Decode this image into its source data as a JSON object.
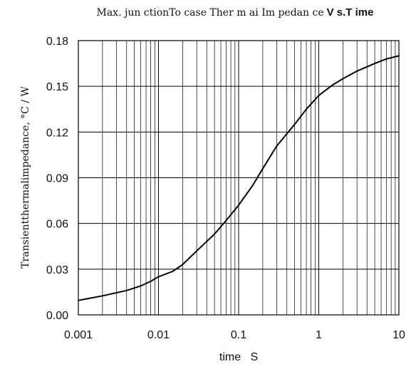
{
  "chart_data": {
    "type": "line",
    "title_part1": "Max. jun ctionTo case Ther m ai Im pedan ce",
    "title_part2": "V s.T ime",
    "xlabel": "time   S",
    "ylabel": "Transientthermalimpedance, °C / W",
    "x_scale": "log",
    "xlim": [
      0.001,
      10
    ],
    "ylim": [
      0,
      0.18
    ],
    "grid": true,
    "x_ticks": [
      "0.001",
      "0.01",
      "0.1",
      "1",
      "10"
    ],
    "x_tick_values": [
      0.001,
      0.01,
      0.1,
      1,
      10
    ],
    "y_ticks": [
      "0.00",
      "0.03",
      "0.06",
      "0.09",
      "0.12",
      "0.15",
      "0.18"
    ],
    "y_tick_values": [
      0,
      0.03,
      0.06,
      0.09,
      0.12,
      0.15,
      0.18
    ],
    "x": [
      0.001,
      0.002,
      0.004,
      0.006,
      0.008,
      0.01,
      0.015,
      0.02,
      0.03,
      0.05,
      0.07,
      0.1,
      0.15,
      0.2,
      0.3,
      0.5,
      0.7,
      1,
      1.5,
      2,
      3,
      5,
      7,
      10
    ],
    "y": [
      0.0095,
      0.0125,
      0.016,
      0.019,
      0.022,
      0.025,
      0.0285,
      0.033,
      0.042,
      0.053,
      0.062,
      0.072,
      0.085,
      0.096,
      0.111,
      0.125,
      0.135,
      0.144,
      0.151,
      0.155,
      0.16,
      0.165,
      0.168,
      0.17
    ]
  }
}
